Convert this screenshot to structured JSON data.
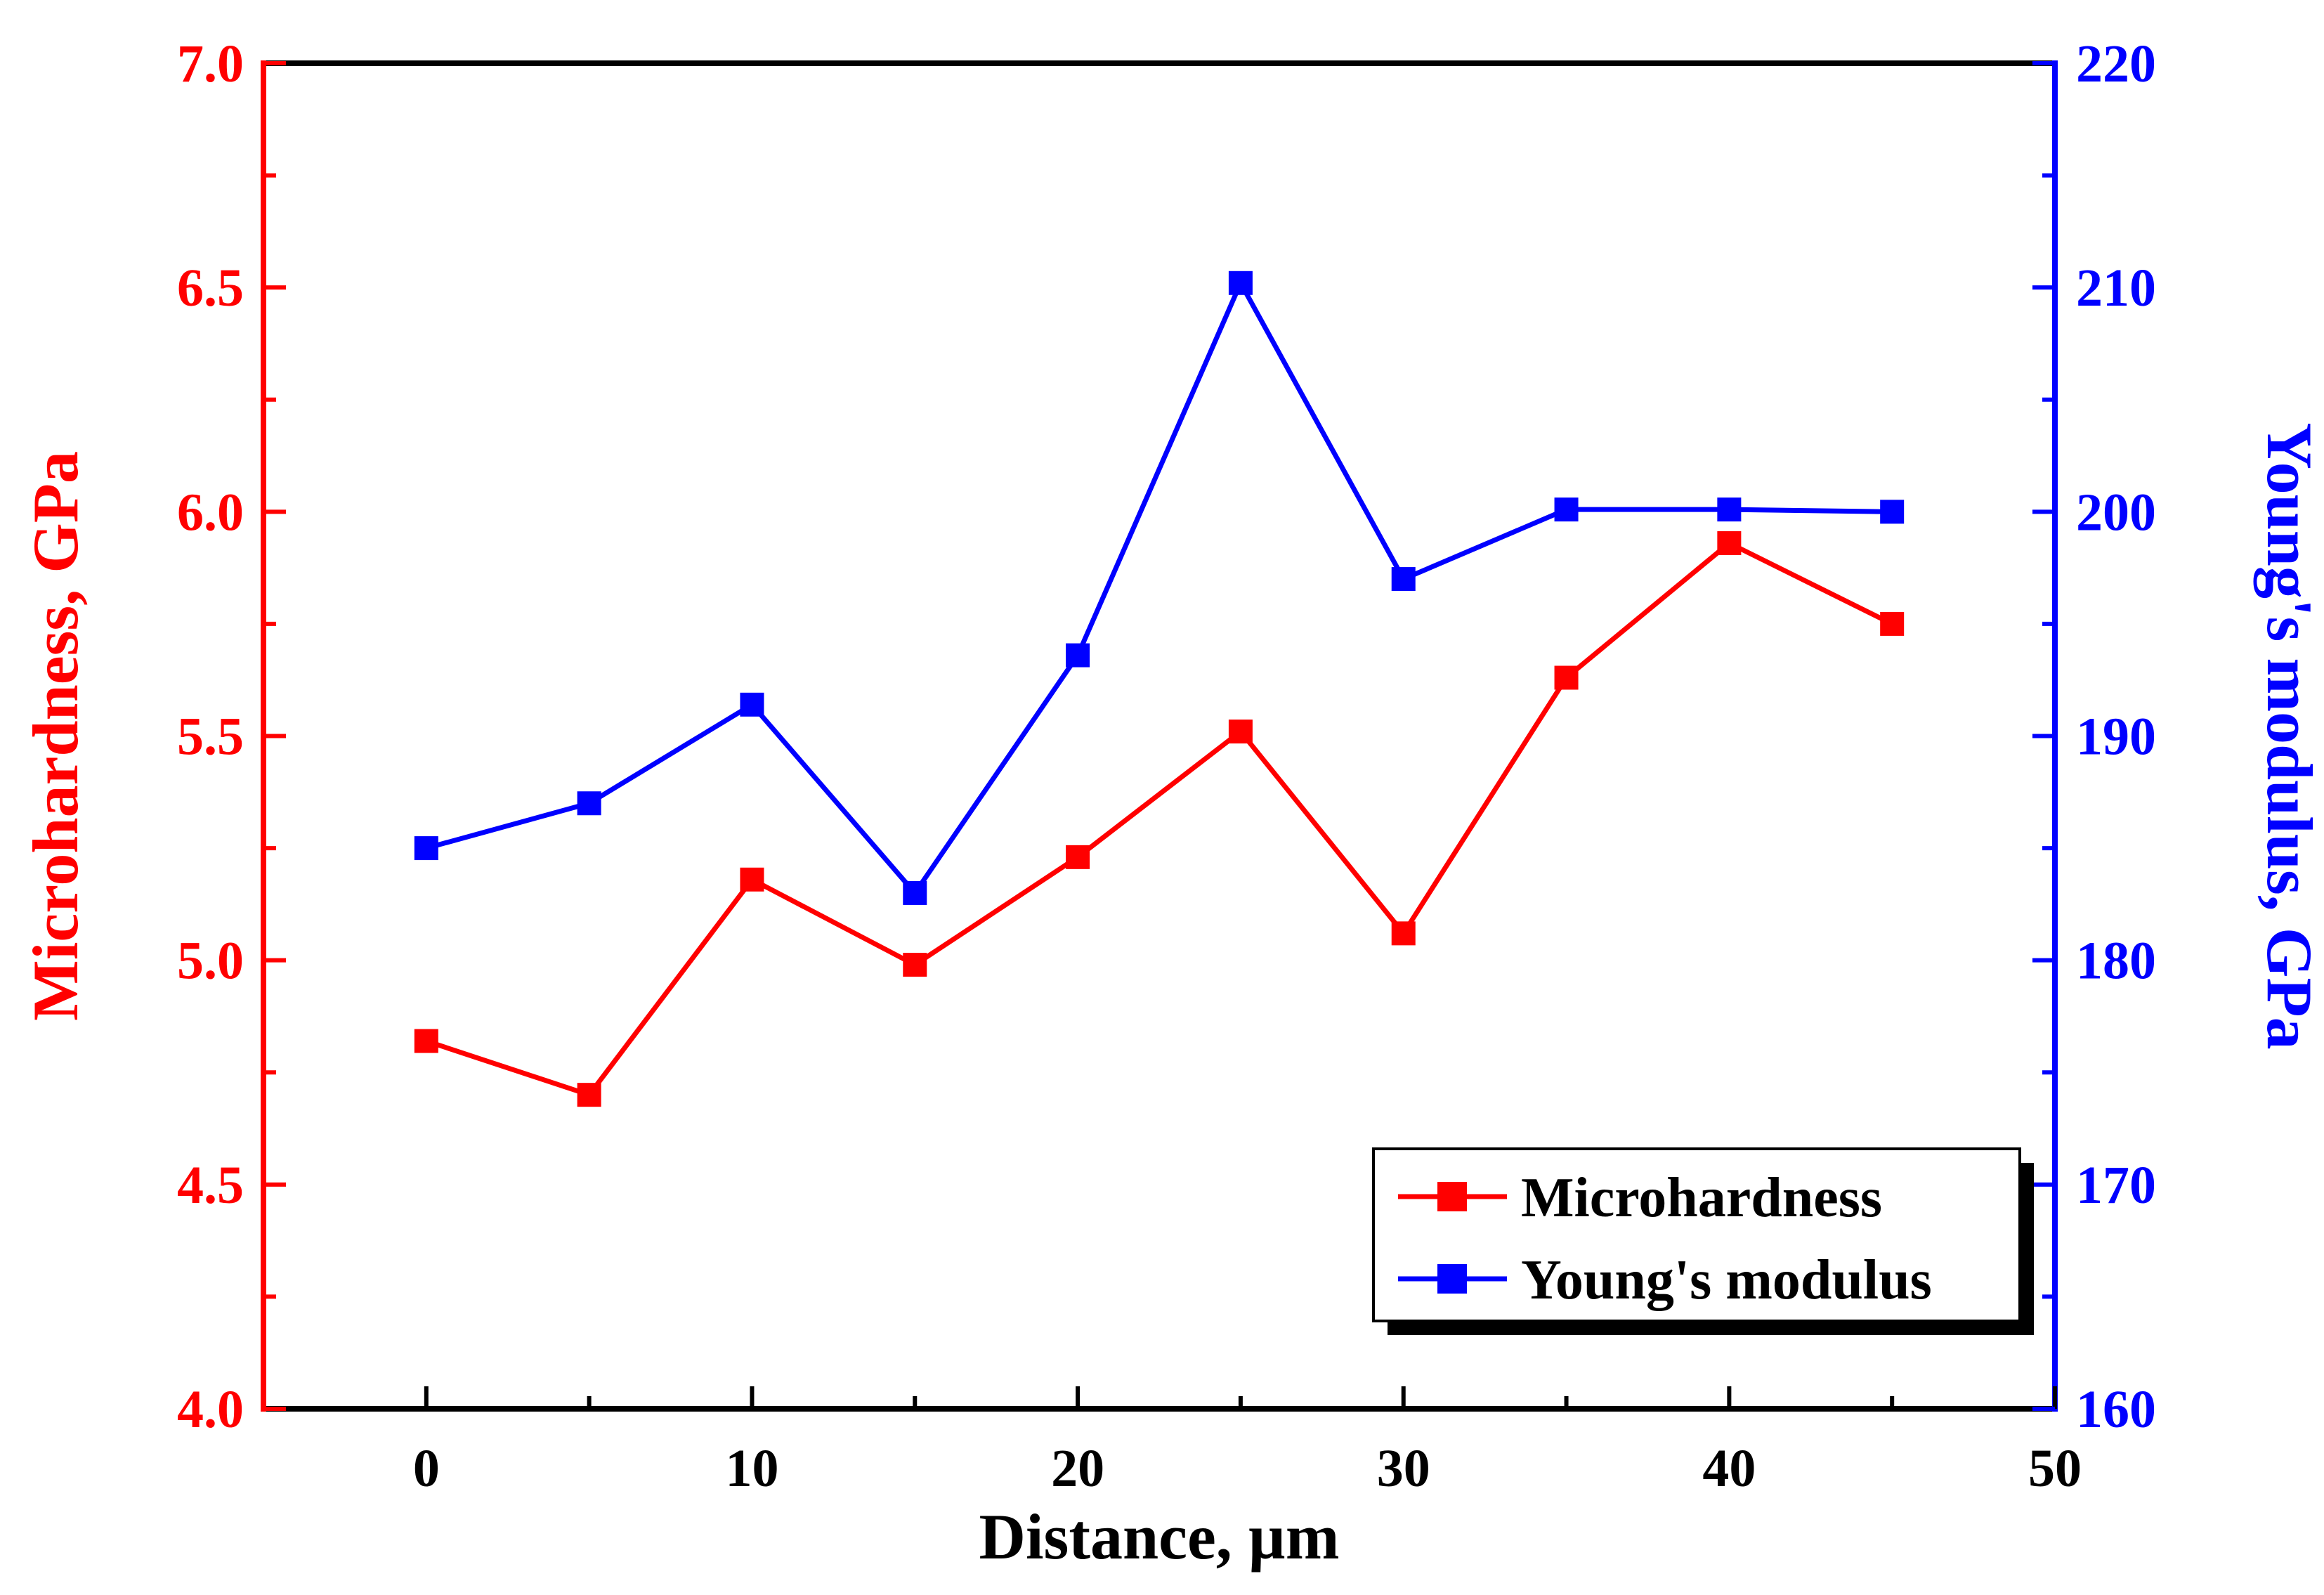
{
  "chart_data": {
    "type": "line",
    "title": "",
    "xlabel": "Distance, µm",
    "ylabel_left": "Microhardness, GPa",
    "ylabel_right": "Young's modulus, GPa",
    "xlim": [
      -5,
      50
    ],
    "ylim_left": [
      4.0,
      7.0
    ],
    "ylim_right": [
      160,
      220
    ],
    "x_ticks": [
      0,
      10,
      20,
      30,
      40,
      50
    ],
    "x_tick_labels": [
      "0",
      "10",
      "20",
      "30",
      "40",
      "50"
    ],
    "x_minor_ticks": [
      5,
      15,
      25,
      35,
      45
    ],
    "y_left_ticks": [
      4.0,
      4.5,
      5.0,
      5.5,
      6.0,
      6.5,
      7.0
    ],
    "y_left_tick_labels": [
      "4.0",
      "4.5",
      "5.0",
      "5.5",
      "6.0",
      "6.5",
      "7.0"
    ],
    "y_right_ticks": [
      160,
      170,
      180,
      190,
      200,
      210,
      220
    ],
    "y_right_tick_labels": [
      "160",
      "170",
      "180",
      "190",
      "200",
      "210",
      "220"
    ],
    "grid": false,
    "legend_position": "bottom-right",
    "x": [
      0,
      5,
      10,
      15,
      20,
      25,
      30,
      35,
      40,
      45
    ],
    "series": [
      {
        "name": "Microhardness",
        "axis": "left",
        "color": "#ff0000",
        "marker": "square",
        "values": [
          4.82,
          4.7,
          5.18,
          4.99,
          5.23,
          5.51,
          5.06,
          5.63,
          5.93,
          5.75
        ]
      },
      {
        "name": "Young's modulus",
        "axis": "right",
        "color": "#0000ff",
        "marker": "square",
        "values": [
          185.0,
          187.0,
          191.4,
          183.0,
          193.6,
          210.2,
          197.0,
          200.1,
          200.1,
          200.0
        ]
      }
    ],
    "axis_colors": {
      "left": "#ff0000",
      "right": "#0000ff",
      "frame": "#000000"
    }
  }
}
